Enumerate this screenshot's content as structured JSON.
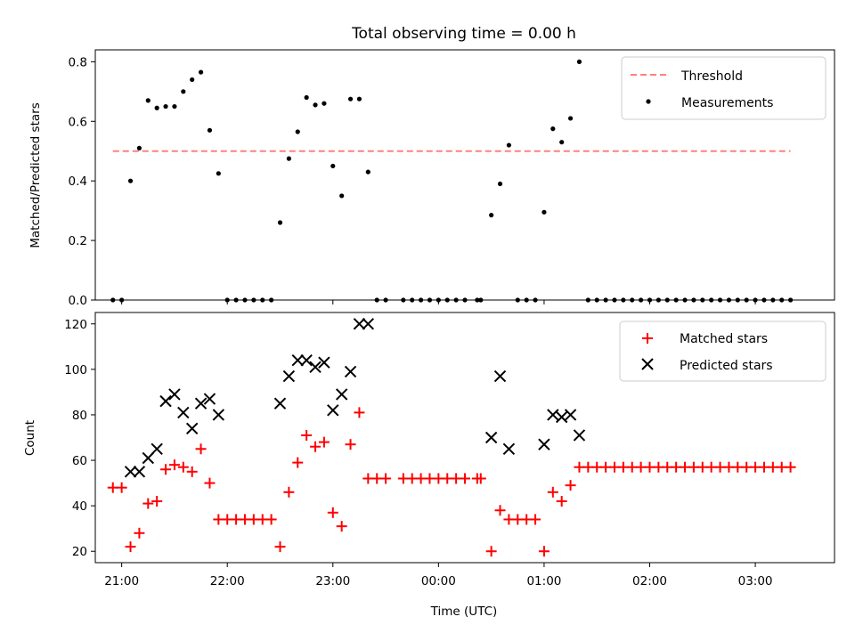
{
  "chart_data": [
    {
      "type": "scatter",
      "title": "Total observing time = 0.00 h",
      "xlabel": "",
      "ylabel": "Matched/Predicted stars",
      "xlim": [
        "20:45",
        "03:45"
      ],
      "ylim": [
        0,
        0.84
      ],
      "yticks": [
        "0.0",
        "0.2",
        "0.4",
        "0.6",
        "0.8"
      ],
      "grid": false,
      "legend": "top-right",
      "threshold": {
        "name": "Threshold",
        "value": 0.5,
        "x": [
          "20:55",
          "03:20"
        ],
        "color": "#ff8080"
      },
      "series": [
        {
          "name": "Measurements",
          "color": "#000000",
          "points": [
            [
              "20:55",
              0
            ],
            [
              "21:00",
              0
            ],
            [
              "21:05",
              0.4
            ],
            [
              "21:10",
              0.51
            ],
            [
              "21:15",
              0.67
            ],
            [
              "21:20",
              0.645
            ],
            [
              "21:25",
              0.65
            ],
            [
              "21:30",
              0.65
            ],
            [
              "21:35",
              0.7
            ],
            [
              "21:40",
              0.74
            ],
            [
              "21:45",
              0.765
            ],
            [
              "21:50",
              0.57
            ],
            [
              "21:55",
              0.425
            ],
            [
              "22:00",
              0
            ],
            [
              "22:05",
              0
            ],
            [
              "22:10",
              0
            ],
            [
              "22:15",
              0
            ],
            [
              "22:20",
              0
            ],
            [
              "22:25",
              0
            ],
            [
              "22:30",
              0.26
            ],
            [
              "22:35",
              0.475
            ],
            [
              "22:40",
              0.565
            ],
            [
              "22:45",
              0.68
            ],
            [
              "22:50",
              0.655
            ],
            [
              "22:55",
              0.66
            ],
            [
              "23:00",
              0.45
            ],
            [
              "23:05",
              0.35
            ],
            [
              "23:10",
              0.675
            ],
            [
              "23:15",
              0.675
            ],
            [
              "23:20",
              0.43
            ],
            [
              "23:25",
              0
            ],
            [
              "23:30",
              0
            ],
            [
              "23:40",
              0
            ],
            [
              "23:45",
              0
            ],
            [
              "23:50",
              0
            ],
            [
              "23:55",
              0
            ],
            [
              "00:00",
              0
            ],
            [
              "00:05",
              0
            ],
            [
              "00:10",
              0
            ],
            [
              "00:15",
              0
            ],
            [
              "00:22",
              0
            ],
            [
              "00:24",
              0
            ],
            [
              "00:30",
              0.285
            ],
            [
              "00:35",
              0.39
            ],
            [
              "00:40",
              0.52
            ],
            [
              "00:45",
              0
            ],
            [
              "00:50",
              0
            ],
            [
              "00:55",
              0
            ],
            [
              "01:00",
              0.295
            ],
            [
              "01:05",
              0.575
            ],
            [
              "01:10",
              0.53
            ],
            [
              "01:15",
              0.61
            ],
            [
              "01:20",
              0.8
            ],
            [
              "01:25",
              0
            ],
            [
              "01:30",
              0
            ],
            [
              "01:35",
              0
            ],
            [
              "01:40",
              0
            ],
            [
              "01:45",
              0
            ],
            [
              "01:50",
              0
            ],
            [
              "01:55",
              0
            ],
            [
              "02:00",
              0
            ],
            [
              "02:05",
              0
            ],
            [
              "02:10",
              0
            ],
            [
              "02:15",
              0
            ],
            [
              "02:20",
              0
            ],
            [
              "02:25",
              0
            ],
            [
              "02:30",
              0
            ],
            [
              "02:35",
              0
            ],
            [
              "02:40",
              0
            ],
            [
              "02:45",
              0
            ],
            [
              "02:50",
              0
            ],
            [
              "02:55",
              0
            ],
            [
              "03:00",
              0
            ],
            [
              "03:05",
              0
            ],
            [
              "03:10",
              0
            ],
            [
              "03:15",
              0
            ],
            [
              "03:20",
              0
            ]
          ]
        }
      ]
    },
    {
      "type": "scatter",
      "title": "",
      "xlabel": "Time (UTC)",
      "ylabel": "Count",
      "xlim": [
        "20:45",
        "03:45"
      ],
      "ylim": [
        15,
        125
      ],
      "yticks": [
        "20",
        "40",
        "60",
        "80",
        "100",
        "120"
      ],
      "xticks": [
        "21:00",
        "22:00",
        "23:00",
        "00:00",
        "01:00",
        "02:00",
        "03:00"
      ],
      "grid": false,
      "legend": "top-right",
      "series": [
        {
          "name": "Matched stars",
          "color": "#ff0000",
          "marker": "plus",
          "points": [
            [
              "20:55",
              48
            ],
            [
              "21:00",
              48
            ],
            [
              "21:05",
              22
            ],
            [
              "21:10",
              28
            ],
            [
              "21:15",
              41
            ],
            [
              "21:20",
              42
            ],
            [
              "21:25",
              56
            ],
            [
              "21:30",
              58
            ],
            [
              "21:35",
              57
            ],
            [
              "21:40",
              55
            ],
            [
              "21:45",
              65
            ],
            [
              "21:50",
              50
            ],
            [
              "21:55",
              34
            ],
            [
              "22:00",
              34
            ],
            [
              "22:05",
              34
            ],
            [
              "22:10",
              34
            ],
            [
              "22:15",
              34
            ],
            [
              "22:20",
              34
            ],
            [
              "22:25",
              34
            ],
            [
              "22:30",
              22
            ],
            [
              "22:35",
              46
            ],
            [
              "22:40",
              59
            ],
            [
              "22:45",
              71
            ],
            [
              "22:50",
              66
            ],
            [
              "22:55",
              68
            ],
            [
              "23:00",
              37
            ],
            [
              "23:05",
              31
            ],
            [
              "23:10",
              67
            ],
            [
              "23:15",
              81
            ],
            [
              "23:20",
              52
            ],
            [
              "23:25",
              52
            ],
            [
              "23:30",
              52
            ],
            [
              "23:40",
              52
            ],
            [
              "23:45",
              52
            ],
            [
              "23:50",
              52
            ],
            [
              "23:55",
              52
            ],
            [
              "00:00",
              52
            ],
            [
              "00:05",
              52
            ],
            [
              "00:10",
              52
            ],
            [
              "00:15",
              52
            ],
            [
              "00:22",
              52
            ],
            [
              "00:24",
              52
            ],
            [
              "00:30",
              20
            ],
            [
              "00:35",
              38
            ],
            [
              "00:40",
              34
            ],
            [
              "00:45",
              34
            ],
            [
              "00:50",
              34
            ],
            [
              "00:55",
              34
            ],
            [
              "01:00",
              20
            ],
            [
              "01:05",
              46
            ],
            [
              "01:10",
              42
            ],
            [
              "01:15",
              49
            ],
            [
              "01:20",
              57
            ],
            [
              "01:25",
              57
            ],
            [
              "01:30",
              57
            ],
            [
              "01:35",
              57
            ],
            [
              "01:40",
              57
            ],
            [
              "01:45",
              57
            ],
            [
              "01:50",
              57
            ],
            [
              "01:55",
              57
            ],
            [
              "02:00",
              57
            ],
            [
              "02:05",
              57
            ],
            [
              "02:10",
              57
            ],
            [
              "02:15",
              57
            ],
            [
              "02:20",
              57
            ],
            [
              "02:25",
              57
            ],
            [
              "02:30",
              57
            ],
            [
              "02:35",
              57
            ],
            [
              "02:40",
              57
            ],
            [
              "02:45",
              57
            ],
            [
              "02:50",
              57
            ],
            [
              "02:55",
              57
            ],
            [
              "03:00",
              57
            ],
            [
              "03:05",
              57
            ],
            [
              "03:10",
              57
            ],
            [
              "03:15",
              57
            ],
            [
              "03:20",
              57
            ]
          ]
        },
        {
          "name": "Predicted stars",
          "color": "#000000",
          "marker": "x",
          "points": [
            [
              "21:05",
              55
            ],
            [
              "21:10",
              55
            ],
            [
              "21:15",
              61
            ],
            [
              "21:20",
              65
            ],
            [
              "21:25",
              86
            ],
            [
              "21:30",
              89
            ],
            [
              "21:35",
              81
            ],
            [
              "21:40",
              74
            ],
            [
              "21:45",
              85
            ],
            [
              "21:50",
              87
            ],
            [
              "21:55",
              80
            ],
            [
              "22:30",
              85
            ],
            [
              "22:35",
              97
            ],
            [
              "22:40",
              104
            ],
            [
              "22:45",
              104
            ],
            [
              "22:50",
              101
            ],
            [
              "22:55",
              103
            ],
            [
              "23:00",
              82
            ],
            [
              "23:05",
              89
            ],
            [
              "23:10",
              99
            ],
            [
              "23:15",
              120
            ],
            [
              "23:20",
              120
            ],
            [
              "00:30",
              70
            ],
            [
              "00:35",
              97
            ],
            [
              "00:40",
              65
            ],
            [
              "01:00",
              67
            ],
            [
              "01:05",
              80
            ],
            [
              "01:10",
              79
            ],
            [
              "01:15",
              80
            ],
            [
              "01:20",
              71
            ]
          ]
        }
      ]
    }
  ]
}
